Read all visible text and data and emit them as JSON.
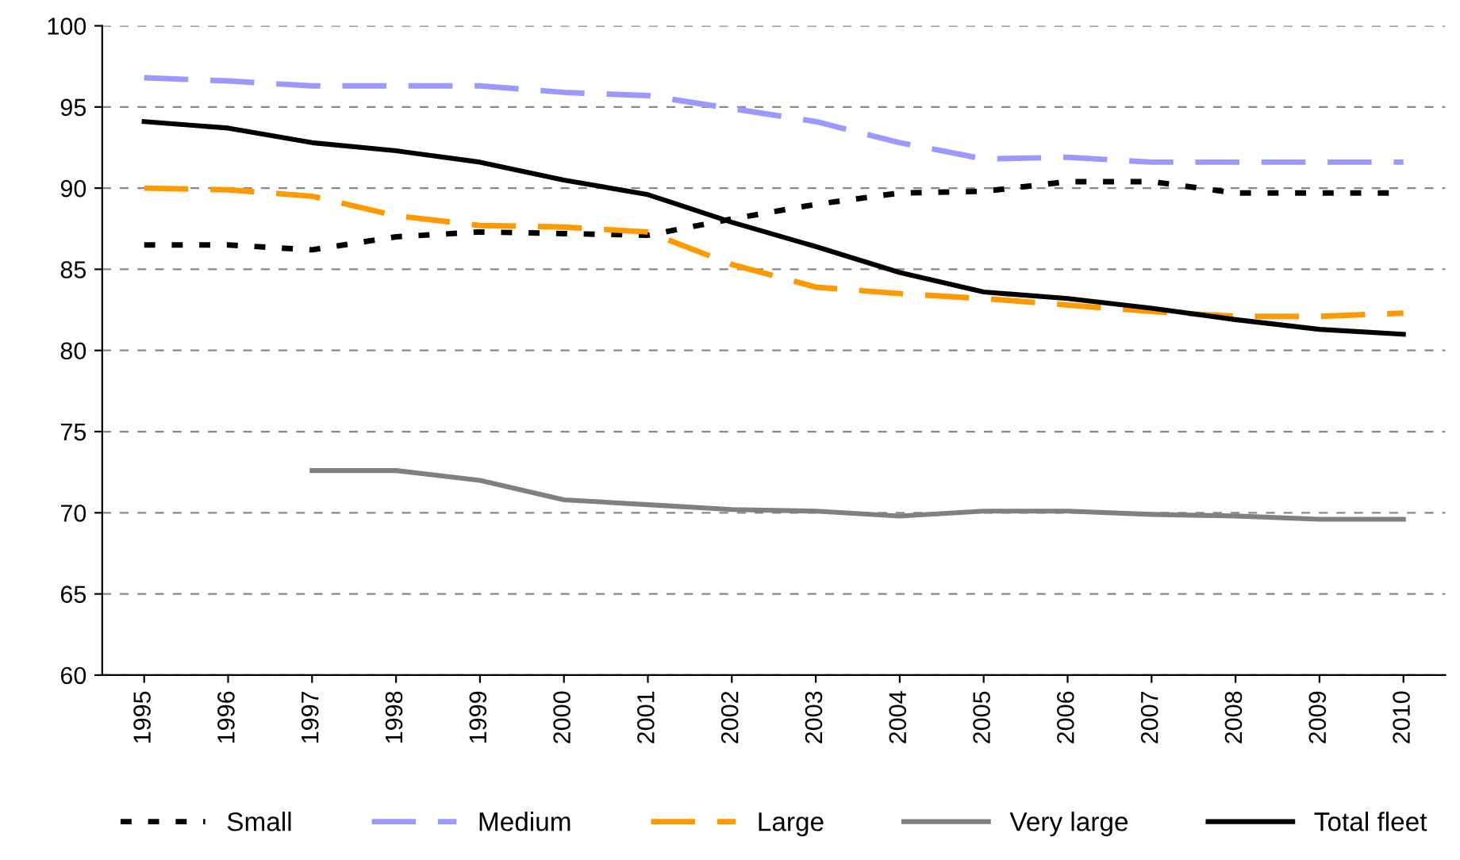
{
  "chart_data": {
    "type": "line",
    "categories": [
      "1995",
      "1996",
      "1997",
      "1998",
      "1999",
      "2000",
      "2001",
      "2002",
      "2003",
      "2004",
      "2005",
      "2006",
      "2007",
      "2008",
      "2009",
      "2010"
    ],
    "ylim": [
      60,
      100
    ],
    "yticks": [
      60,
      65,
      70,
      75,
      80,
      85,
      90,
      95,
      100
    ],
    "grid": "y",
    "legend": "bottom",
    "marker": "none",
    "series": [
      {
        "name": "Small",
        "color": "#000000",
        "line_style": "dotted",
        "values": [
          86.5,
          86.5,
          86.2,
          87.0,
          87.3,
          87.2,
          87.1,
          88.1,
          89.0,
          89.7,
          89.8,
          90.4,
          90.4,
          89.7,
          89.7,
          89.7
        ]
      },
      {
        "name": "Medium",
        "color": "#9999ff",
        "line_style": "dashed",
        "values": [
          96.8,
          96.6,
          96.3,
          96.3,
          96.3,
          95.9,
          95.7,
          94.9,
          94.1,
          92.8,
          91.8,
          91.9,
          91.6,
          91.6,
          91.6,
          91.6
        ]
      },
      {
        "name": "Large",
        "color": "#ff9900",
        "line_style": "dashed",
        "values": [
          90.0,
          89.9,
          89.5,
          88.3,
          87.7,
          87.6,
          87.3,
          85.3,
          83.9,
          83.5,
          83.2,
          82.8,
          82.4,
          82.1,
          82.1,
          82.3
        ]
      },
      {
        "name": "Very large",
        "color": "#808080",
        "line_style": "solid",
        "values": [
          null,
          null,
          72.6,
          72.6,
          72.0,
          70.8,
          70.5,
          70.2,
          70.1,
          69.8,
          70.1,
          70.1,
          69.9,
          69.8,
          69.6,
          69.6
        ]
      },
      {
        "name": "Total fleet",
        "color": "#000000",
        "line_style": "solid",
        "values": [
          94.1,
          93.7,
          92.8,
          92.3,
          91.6,
          90.5,
          89.6,
          87.9,
          86.4,
          84.8,
          83.6,
          83.2,
          82.6,
          81.9,
          81.3,
          81.0
        ]
      }
    ]
  }
}
